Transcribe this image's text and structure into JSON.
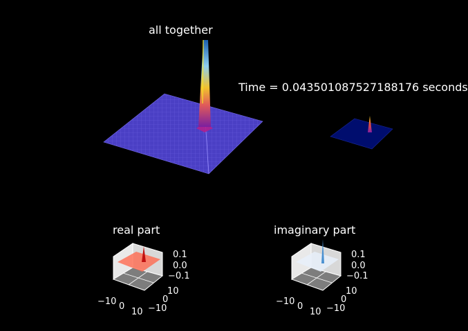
{
  "chart_data": [
    {
      "type": "surface3d",
      "title": "all together",
      "colormap": "plasma",
      "annotation": "Time = 0.043501087527188176 seconds",
      "peak": {
        "x": 0,
        "y": 0,
        "z_rel": 1.0
      }
    },
    {
      "type": "surface3d",
      "title": "",
      "colormap": "plasma",
      "surface_color": "#000d6e"
    },
    {
      "type": "surface3d",
      "title": "real part",
      "colormap": "Reds",
      "x_ticks": [
        "−10",
        "0",
        "10"
      ],
      "y_ticks": [
        "10",
        "0",
        "−10"
      ],
      "z_ticks": [
        "0.1",
        "0.0",
        "−0.1"
      ],
      "xlim": [
        -10,
        10
      ],
      "ylim": [
        -10,
        10
      ],
      "zlim": [
        -0.1,
        0.1
      ]
    },
    {
      "type": "surface3d",
      "title": "imaginary part",
      "colormap": "Blues",
      "x_ticks": [
        "−10",
        "0",
        "10"
      ],
      "y_ticks": [
        "10",
        "0",
        "−10"
      ],
      "z_ticks": [
        "0.1",
        "0.0",
        "−0.1"
      ],
      "xlim": [
        -10,
        10
      ],
      "ylim": [
        -10,
        10
      ],
      "zlim": [
        -0.1,
        0.1
      ]
    }
  ]
}
